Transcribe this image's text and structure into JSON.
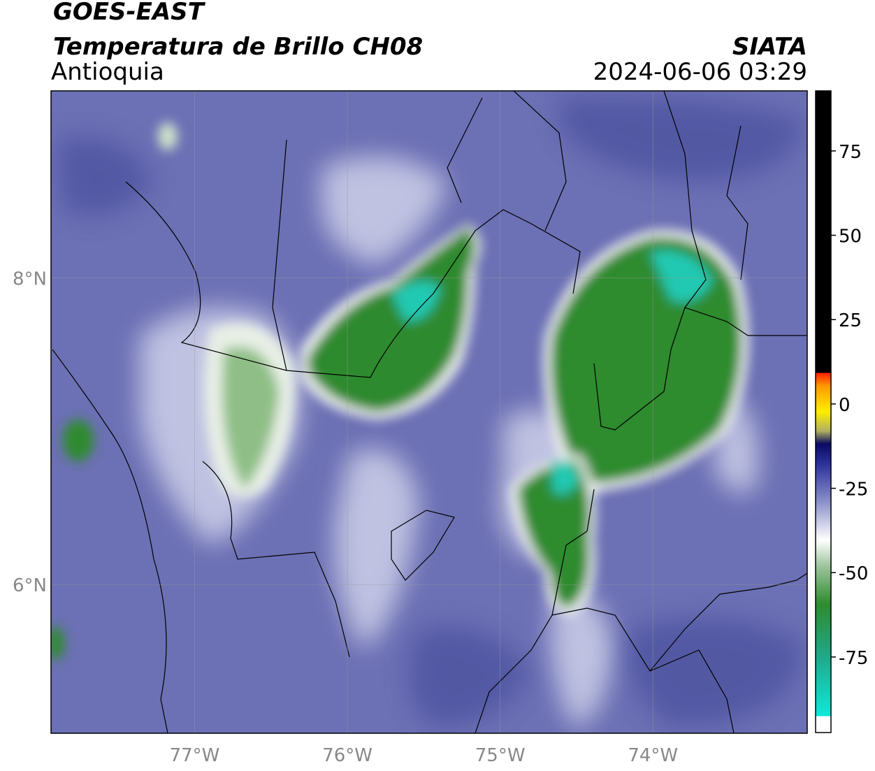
{
  "header": {
    "title": "GOES-EAST",
    "subtitle": "Temperatura de Brillo CH08",
    "region": "Antioquia",
    "source": "SIATA",
    "datetime": "2024-06-06 03:29"
  },
  "map": {
    "xlim": [
      -77.94,
      -72.99
    ],
    "ylim": [
      5.03,
      9.22
    ],
    "xticks": [
      {
        "value": -77,
        "label": "77°W"
      },
      {
        "value": -76,
        "label": "76°W"
      },
      {
        "value": -75,
        "label": "75°W"
      },
      {
        "value": -74,
        "label": "74°W"
      }
    ],
    "yticks": [
      {
        "value": 8,
        "label": "8°N"
      },
      {
        "value": 6,
        "label": "6°N"
      }
    ],
    "grid": true
  },
  "colorbar": {
    "lim": [
      -97.4,
      92.8
    ],
    "ticks": [
      75,
      50,
      25,
      0,
      -25,
      -50,
      -75
    ]
  }
}
